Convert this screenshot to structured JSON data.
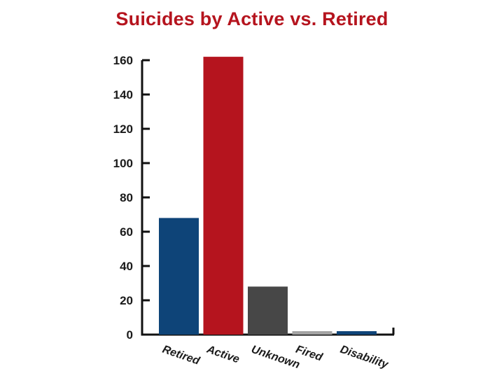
{
  "chart_data": {
    "type": "bar",
    "title": "Suicides by Active vs. Retired",
    "categories": [
      "Retired",
      "Active",
      "Unknown",
      "Fired",
      "Disability"
    ],
    "values": [
      68,
      162,
      28,
      2,
      2
    ],
    "colors": [
      "#0e4478",
      "#b5141e",
      "#474747",
      "#a3a3a3",
      "#0e4478"
    ],
    "ylim": [
      0,
      160
    ],
    "yticks": [
      0,
      20,
      40,
      60,
      80,
      100,
      120,
      140,
      160
    ],
    "grid": false,
    "legend": "none"
  }
}
